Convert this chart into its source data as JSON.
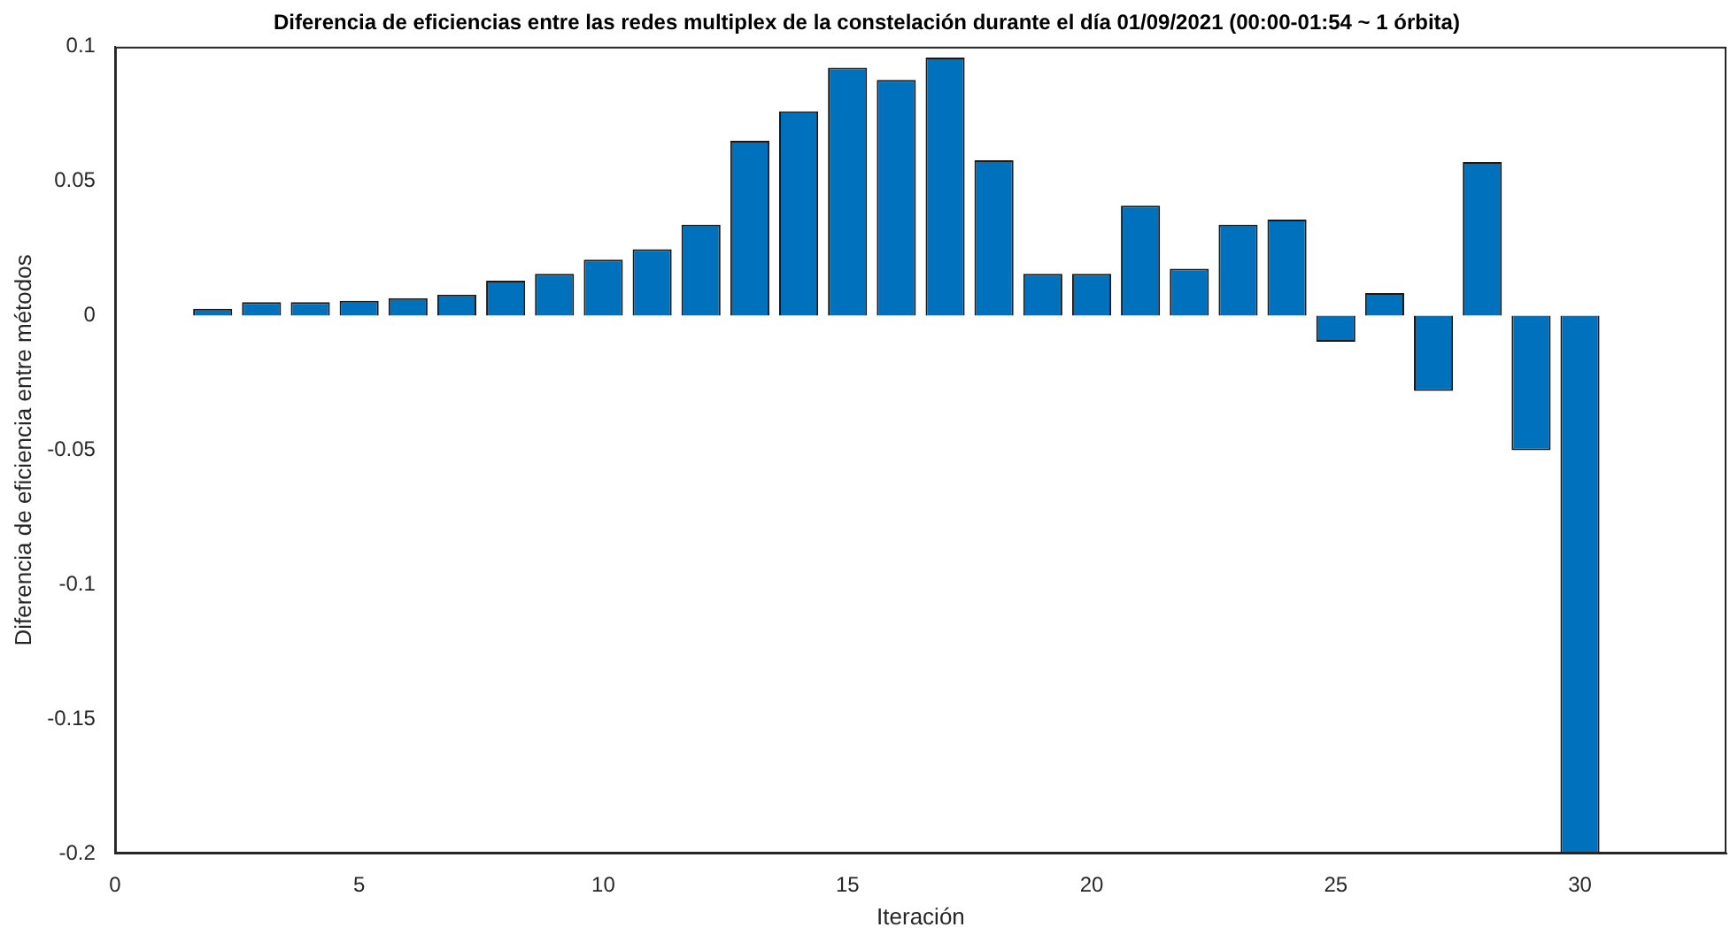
{
  "chart_data": {
    "type": "bar",
    "title": "Diferencia de eficiencias entre las redes multiplex de la constelación durante el día 01/09/2021 (00:00-01:54 ~ 1 órbita)",
    "xlabel": "Iteración",
    "ylabel": "Diferencia de eficiencia entre métodos",
    "x": [
      2,
      3,
      4,
      5,
      6,
      7,
      8,
      9,
      10,
      11,
      12,
      13,
      14,
      15,
      16,
      17,
      18,
      19,
      20,
      21,
      22,
      23,
      24,
      25,
      26,
      27,
      28,
      29,
      30,
      31
    ],
    "values": [
      0.0026,
      0.005,
      0.005,
      0.0055,
      0.0065,
      0.0078,
      0.013,
      0.0156,
      0.0208,
      0.0247,
      0.0338,
      0.065,
      0.076,
      0.0922,
      0.0877,
      0.096,
      0.0578,
      0.0156,
      0.0156,
      0.0409,
      0.0175,
      0.0338,
      0.0357,
      -0.0097,
      0.0084,
      -0.028,
      0.0571,
      -0.05,
      -0.2,
      0
    ],
    "color": "#0072bd",
    "xlim": [
      0,
      33
    ],
    "xticks": [
      0,
      5,
      10,
      15,
      20,
      25,
      30
    ],
    "ylim": [
      -0.2,
      0.1
    ],
    "yticks": [
      -0.2,
      -0.15,
      -0.1,
      -0.05,
      0,
      0.05,
      0.1
    ],
    "grid": false,
    "legend": false
  }
}
